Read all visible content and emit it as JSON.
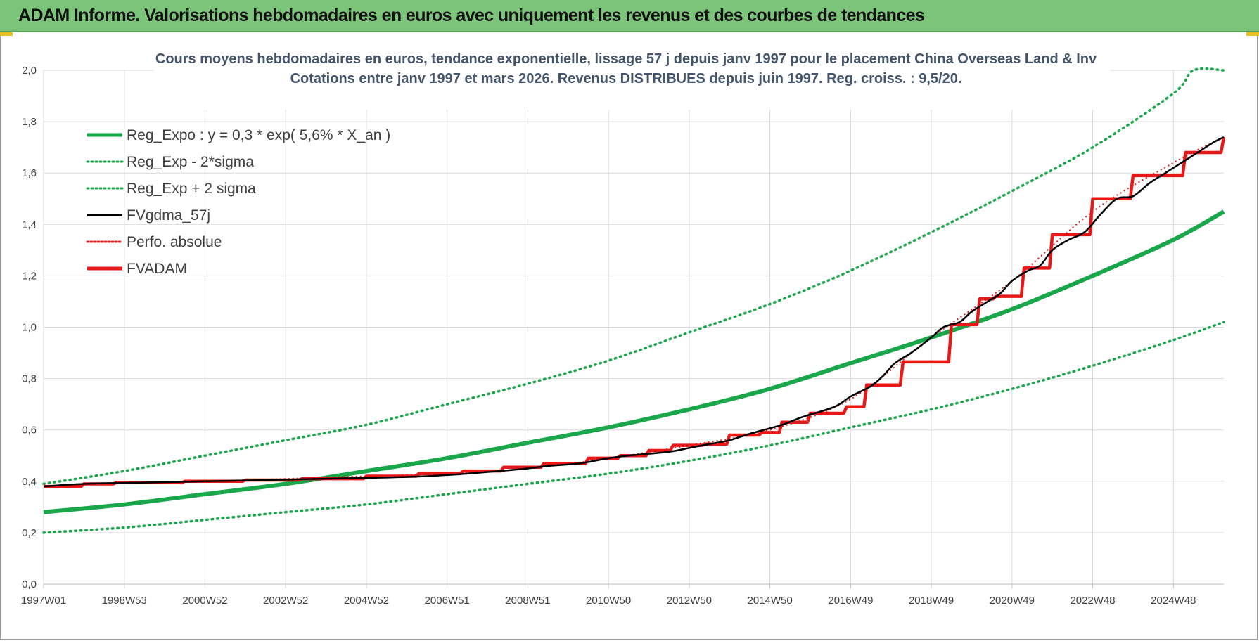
{
  "banner": {
    "title": "ADAM Informe. Valorisations hebdomadaires en euros avec uniquement les revenus et des courbes de tendances"
  },
  "colors": {
    "banner_bg": "#7cc47a",
    "trend": "#1aa64a",
    "perf": "#e02020",
    "fvadam": "#e81818",
    "fvgdma": "#000000",
    "grid": "#d9d9d9",
    "title_text": "#44546a"
  },
  "chart_data": {
    "type": "line",
    "title": "Cours moyens hebdomadaires en euros, tendance exponentielle, lissage 57 j depuis janv 1997 pour le placement China Overseas Land & Inv",
    "subtitle": "Cotations entre janv 1997 et mars 2026. Revenus DISTRIBUES depuis juin 1997. Reg. croiss. : 9,5/20.",
    "xlabel": "",
    "ylabel": "",
    "ylim": [
      0,
      2.0
    ],
    "xlim": [
      1997.0,
      2026.25
    ],
    "y_ticks": [
      "0,0",
      "0,2",
      "0,4",
      "0,6",
      "0,8",
      "1,0",
      "1,2",
      "1,4",
      "1,6",
      "1,8",
      "2,0"
    ],
    "x_ticks": [
      {
        "label": "1997W01",
        "x": 1997.0
      },
      {
        "label": "1998W53",
        "x": 1999.0
      },
      {
        "label": "2000W52",
        "x": 2001.0
      },
      {
        "label": "2002W52",
        "x": 2003.0
      },
      {
        "label": "2004W52",
        "x": 2005.0
      },
      {
        "label": "2006W51",
        "x": 2007.0
      },
      {
        "label": "2008W51",
        "x": 2009.0
      },
      {
        "label": "2010W50",
        "x": 2011.0
      },
      {
        "label": "2012W50",
        "x": 2013.0
      },
      {
        "label": "2014W50",
        "x": 2015.0
      },
      {
        "label": "2016W49",
        "x": 2017.0
      },
      {
        "label": "2018W49",
        "x": 2019.0
      },
      {
        "label": "2020W49",
        "x": 2021.0
      },
      {
        "label": "2022W48",
        "x": 2023.0
      },
      {
        "label": "2024W48",
        "x": 2025.0
      }
    ],
    "grid": true,
    "legend_position": "top-left",
    "series": [
      {
        "name": "Reg_Expo : y = 0,3 * exp( 5,6% *  X_an )",
        "style": "solid-thick",
        "x": [
          1997,
          1999,
          2001,
          2003,
          2005,
          2007,
          2009,
          2011,
          2013,
          2015,
          2017,
          2019,
          2021,
          2023,
          2025,
          2026.25
        ],
        "y": [
          0.28,
          0.31,
          0.35,
          0.39,
          0.44,
          0.49,
          0.55,
          0.61,
          0.68,
          0.76,
          0.86,
          0.96,
          1.07,
          1.2,
          1.34,
          1.45
        ]
      },
      {
        "name": "Reg_Exp - 2*sigma",
        "style": "dotted",
        "x": [
          1997,
          1999,
          2001,
          2003,
          2005,
          2007,
          2009,
          2011,
          2013,
          2015,
          2017,
          2019,
          2021,
          2023,
          2025,
          2026.25
        ],
        "y": [
          0.2,
          0.22,
          0.25,
          0.28,
          0.31,
          0.35,
          0.39,
          0.43,
          0.48,
          0.54,
          0.61,
          0.68,
          0.76,
          0.85,
          0.95,
          1.02
        ]
      },
      {
        "name": "Reg_Exp + 2 sigma",
        "style": "dotted",
        "x": [
          1997,
          1999,
          2001,
          2003,
          2005,
          2007,
          2009,
          2011,
          2013,
          2015,
          2017,
          2019,
          2021,
          2023,
          2025,
          2025.5,
          2026.25
        ],
        "y": [
          0.39,
          0.44,
          0.5,
          0.56,
          0.62,
          0.7,
          0.78,
          0.87,
          0.98,
          1.09,
          1.22,
          1.37,
          1.53,
          1.7,
          1.91,
          2.0,
          2.0
        ]
      },
      {
        "name": "FVgdma_57j",
        "style": "solid-thin",
        "x": [
          1997,
          1998,
          1999.5,
          2001,
          2002.5,
          2004,
          2005.5,
          2006.5,
          2007.5,
          2008.3,
          2009,
          2009.5,
          2010.3,
          2011,
          2011.5,
          2012.5,
          2013,
          2013.5,
          2014,
          2014.5,
          2015.3,
          2015.8,
          2016.6,
          2017,
          2017.5,
          2017.8,
          2018.1,
          2018.5,
          2019.0,
          2019.3,
          2019.7,
          2020.0,
          2020.4,
          2020.7,
          2021.0,
          2021.4,
          2021.7,
          2022.0,
          2022.4,
          2022.8,
          2023.2,
          2023.6,
          2024.0,
          2024.4,
          2024.8,
          2025.2,
          2025.6,
          2026.0,
          2026.25
        ],
        "y": [
          0.38,
          0.39,
          0.395,
          0.4,
          0.405,
          0.41,
          0.415,
          0.42,
          0.43,
          0.44,
          0.45,
          0.46,
          0.47,
          0.49,
          0.5,
          0.515,
          0.53,
          0.545,
          0.56,
          0.585,
          0.62,
          0.65,
          0.69,
          0.73,
          0.77,
          0.81,
          0.86,
          0.9,
          0.96,
          1.0,
          1.02,
          1.06,
          1.1,
          1.13,
          1.18,
          1.22,
          1.24,
          1.3,
          1.34,
          1.37,
          1.44,
          1.5,
          1.51,
          1.56,
          1.6,
          1.64,
          1.68,
          1.72,
          1.74
        ]
      },
      {
        "name": "Perfo. absolue",
        "style": "dotted-thin",
        "x": [
          1997,
          1999,
          2001,
          2003,
          2005,
          2007,
          2009,
          2011,
          2013,
          2015,
          2017,
          2019,
          2021,
          2023,
          2025,
          2026.25
        ],
        "y": [
          0.38,
          0.395,
          0.4,
          0.41,
          0.42,
          0.43,
          0.45,
          0.49,
          0.54,
          0.6,
          0.72,
          0.96,
          1.18,
          1.45,
          1.64,
          1.74
        ]
      },
      {
        "name": "FVADAM",
        "style": "solid-thick",
        "x": [
          1997,
          1998,
          1998.8,
          2000.5,
          2002,
          2003.4,
          2005,
          2006.3,
          2007.4,
          2008.4,
          2009.4,
          2010.5,
          2011.3,
          2012.0,
          2012.6,
          2013.4,
          2014.0,
          2014.8,
          2015.3,
          2016.0,
          2016.9,
          2017.4,
          2017.7,
          2018.3,
          2018.7,
          2019.5,
          2019.8,
          2020.2,
          2020.6,
          2021.3,
          2021.5,
          2022.0,
          2022.6,
          2023.0,
          2023.4,
          2024.0,
          2024.6,
          2025.3,
          2025.5,
          2026.25
        ],
        "y": [
          0.38,
          0.39,
          0.395,
          0.4,
          0.405,
          0.41,
          0.42,
          0.43,
          0.44,
          0.455,
          0.47,
          0.49,
          0.5,
          0.52,
          0.54,
          0.545,
          0.58,
          0.59,
          0.63,
          0.665,
          0.69,
          0.775,
          0.775,
          0.865,
          0.865,
          1.01,
          1.01,
          1.11,
          1.12,
          1.23,
          1.23,
          1.36,
          1.36,
          1.5,
          1.5,
          1.59,
          1.59,
          1.68,
          1.68,
          1.74
        ]
      }
    ]
  }
}
